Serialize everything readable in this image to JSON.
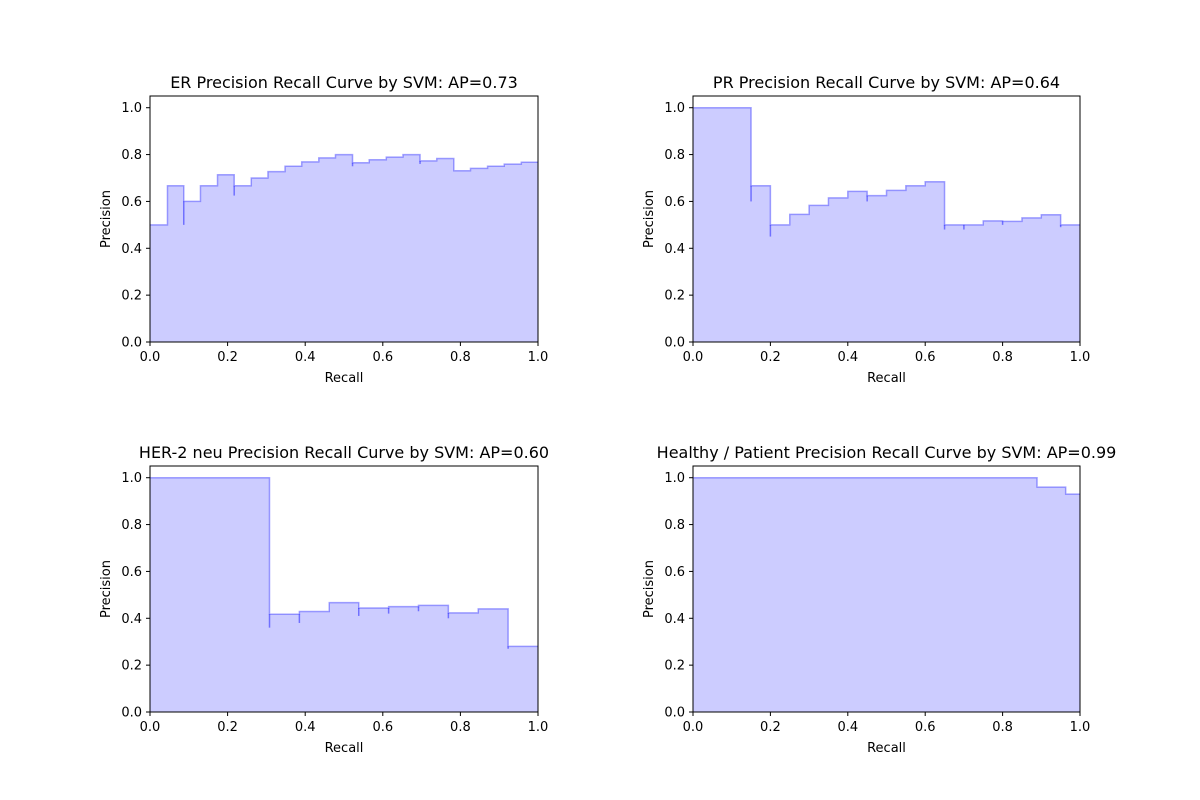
{
  "chart_data": [
    {
      "type": "area",
      "title": "ER Precision Recall Curve by SVM: AP=0.73",
      "xlabel": "Recall",
      "ylabel": "Precision",
      "xlim": [
        0,
        1
      ],
      "ylim": [
        0,
        1.05
      ],
      "xticks": [
        "0.0",
        "0.2",
        "0.4",
        "0.6",
        "0.8",
        "1.0"
      ],
      "yticks": [
        "0.0",
        "0.2",
        "0.4",
        "0.6",
        "0.8",
        "1.0"
      ],
      "grid": false,
      "color": "#0000ff",
      "recall": [
        0.0,
        0.045,
        0.045,
        0.087,
        0.087,
        0.13,
        0.13,
        0.174,
        0.174,
        0.217,
        0.217,
        0.261,
        0.261,
        0.304,
        0.304,
        0.348,
        0.348,
        0.391,
        0.391,
        0.435,
        0.435,
        0.478,
        0.478,
        0.522,
        0.522,
        0.565,
        0.565,
        0.609,
        0.609,
        0.652,
        0.652,
        0.696,
        0.696,
        0.739,
        0.739,
        0.783,
        0.783,
        0.826,
        0.826,
        0.87,
        0.87,
        0.913,
        0.913,
        0.957,
        0.957,
        1.0
      ],
      "precision": [
        0.5,
        0.5,
        0.667,
        0.667,
        0.6,
        0.6,
        0.667,
        0.667,
        0.714,
        0.714,
        0.667,
        0.667,
        0.7,
        0.7,
        0.727,
        0.727,
        0.75,
        0.75,
        0.769,
        0.769,
        0.786,
        0.786,
        0.8,
        0.8,
        0.765,
        0.765,
        0.778,
        0.778,
        0.789,
        0.789,
        0.8,
        0.8,
        0.773,
        0.773,
        0.783,
        0.783,
        0.731,
        0.731,
        0.741,
        0.741,
        0.75,
        0.75,
        0.759,
        0.759,
        0.767,
        0.767
      ],
      "dips": [
        [
          0.087,
          0.5
        ],
        [
          0.217,
          0.625
        ],
        [
          0.522,
          0.75
        ],
        [
          0.696,
          0.76
        ]
      ]
    },
    {
      "type": "area",
      "title": "PR Precision Recall Curve by SVM: AP=0.64",
      "xlabel": "Recall",
      "ylabel": "Precision",
      "xlim": [
        0,
        1
      ],
      "ylim": [
        0,
        1.05
      ],
      "xticks": [
        "0.0",
        "0.2",
        "0.4",
        "0.6",
        "0.8",
        "1.0"
      ],
      "yticks": [
        "0.0",
        "0.2",
        "0.4",
        "0.6",
        "0.8",
        "1.0"
      ],
      "grid": false,
      "color": "#0000ff",
      "recall": [
        0.0,
        0.15,
        0.15,
        0.2,
        0.2,
        0.25,
        0.25,
        0.3,
        0.3,
        0.35,
        0.35,
        0.4,
        0.4,
        0.45,
        0.45,
        0.5,
        0.5,
        0.55,
        0.55,
        0.6,
        0.6,
        0.65,
        0.65,
        0.7,
        0.7,
        0.75,
        0.75,
        0.8,
        0.8,
        0.85,
        0.85,
        0.9,
        0.9,
        0.95,
        0.95,
        1.0
      ],
      "precision": [
        1.0,
        1.0,
        0.667,
        0.667,
        0.5,
        0.5,
        0.545,
        0.545,
        0.583,
        0.583,
        0.615,
        0.615,
        0.643,
        0.643,
        0.625,
        0.625,
        0.647,
        0.647,
        0.667,
        0.667,
        0.684,
        0.684,
        0.5,
        0.5,
        0.5,
        0.5,
        0.517,
        0.517,
        0.515,
        0.515,
        0.53,
        0.53,
        0.543,
        0.543,
        0.5,
        0.5
      ],
      "dips": [
        [
          0.15,
          0.6
        ],
        [
          0.2,
          0.45
        ],
        [
          0.45,
          0.6
        ],
        [
          0.65,
          0.48
        ],
        [
          0.7,
          0.48
        ],
        [
          0.8,
          0.5
        ],
        [
          0.95,
          0.49
        ]
      ]
    },
    {
      "type": "area",
      "title": "HER-2 neu Precision Recall Curve by SVM: AP=0.60",
      "xlabel": "Recall",
      "ylabel": "Precision",
      "xlim": [
        0,
        1
      ],
      "ylim": [
        0,
        1.05
      ],
      "xticks": [
        "0.0",
        "0.2",
        "0.4",
        "0.6",
        "0.8",
        "1.0"
      ],
      "yticks": [
        "0.0",
        "0.2",
        "0.4",
        "0.6",
        "0.8",
        "1.0"
      ],
      "grid": false,
      "color": "#0000ff",
      "recall": [
        0.0,
        0.308,
        0.308,
        0.385,
        0.385,
        0.462,
        0.462,
        0.538,
        0.538,
        0.615,
        0.615,
        0.692,
        0.692,
        0.769,
        0.769,
        0.846,
        0.846,
        0.923,
        0.923,
        1.0
      ],
      "precision": [
        1.0,
        1.0,
        0.417,
        0.417,
        0.429,
        0.429,
        0.467,
        0.467,
        0.444,
        0.444,
        0.45,
        0.45,
        0.455,
        0.455,
        0.423,
        0.423,
        0.44,
        0.44,
        0.28,
        0.28
      ],
      "dips": [
        [
          0.308,
          0.36
        ],
        [
          0.385,
          0.38
        ],
        [
          0.538,
          0.41
        ],
        [
          0.615,
          0.42
        ],
        [
          0.692,
          0.43
        ],
        [
          0.769,
          0.4
        ],
        [
          0.923,
          0.27
        ]
      ]
    },
    {
      "type": "area",
      "title": "Healthy / Patient Precision Recall Curve by SVM: AP=0.99",
      "xlabel": "Recall",
      "ylabel": "Precision",
      "xlim": [
        0,
        1
      ],
      "ylim": [
        0,
        1.05
      ],
      "xticks": [
        "0.0",
        "0.2",
        "0.4",
        "0.6",
        "0.8",
        "1.0"
      ],
      "yticks": [
        "0.0",
        "0.2",
        "0.4",
        "0.6",
        "0.8",
        "1.0"
      ],
      "grid": false,
      "color": "#0000ff",
      "recall": [
        0.0,
        0.889,
        0.889,
        0.963,
        0.963,
        1.0
      ],
      "precision": [
        1.0,
        1.0,
        0.96,
        0.96,
        0.93,
        0.93
      ],
      "dips": []
    }
  ]
}
